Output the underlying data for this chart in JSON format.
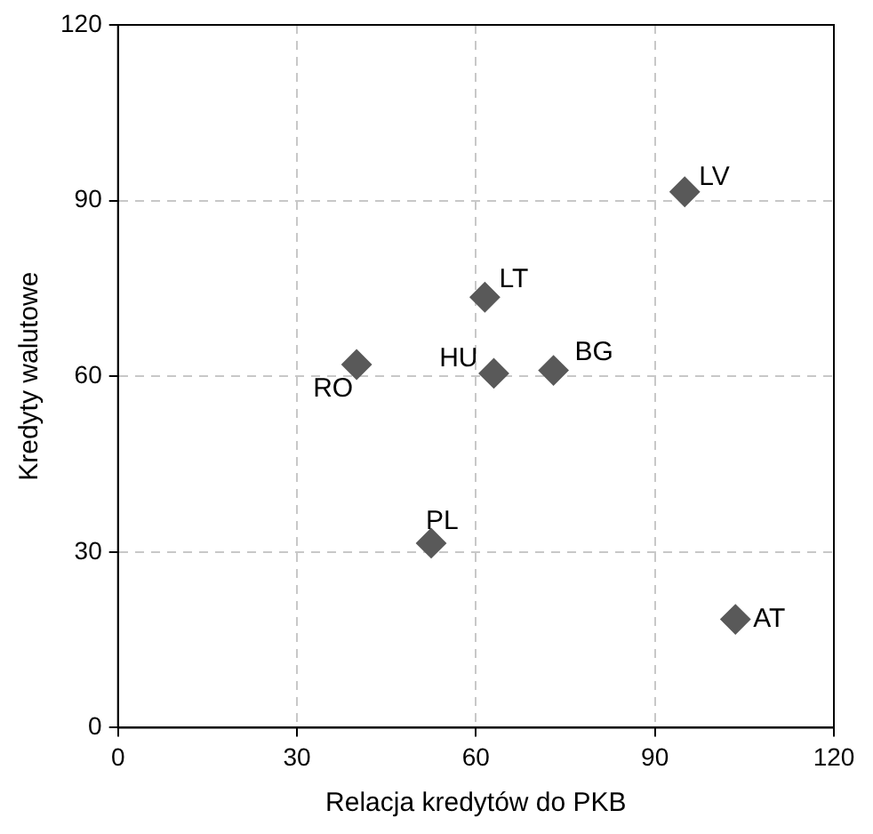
{
  "chart_data": {
    "type": "scatter",
    "xlabel": "Relacja kredytów do PKB",
    "ylabel": "Kredyty walutowe",
    "x": [
      95,
      61.5,
      63,
      73,
      40,
      52.5,
      103.5
    ],
    "values": [
      91.5,
      73.5,
      60.5,
      61,
      62,
      31.5,
      18.5
    ],
    "color": "#595959",
    "marker": "diamond",
    "grid": true,
    "legend": false,
    "xlim": [
      0,
      120
    ],
    "xticks": [
      0,
      30,
      60,
      90,
      120
    ],
    "ylim": [
      0,
      120
    ],
    "yticks": [
      0,
      30,
      60,
      90,
      120
    ],
    "annotations": [
      {
        "text": "LV",
        "x": 95,
        "y": 91.5
      },
      {
        "text": "LT",
        "x": 61.5,
        "y": 73.5
      },
      {
        "text": "HU",
        "x": 63,
        "y": 60.5
      },
      {
        "text": "BG",
        "x": 73,
        "y": 61
      },
      {
        "text": "RO",
        "x": 40,
        "y": 62
      },
      {
        "text": "PL",
        "x": 52.5,
        "y": 31.5
      },
      {
        "text": "AT",
        "x": 103.5,
        "y": 18.5
      }
    ]
  }
}
